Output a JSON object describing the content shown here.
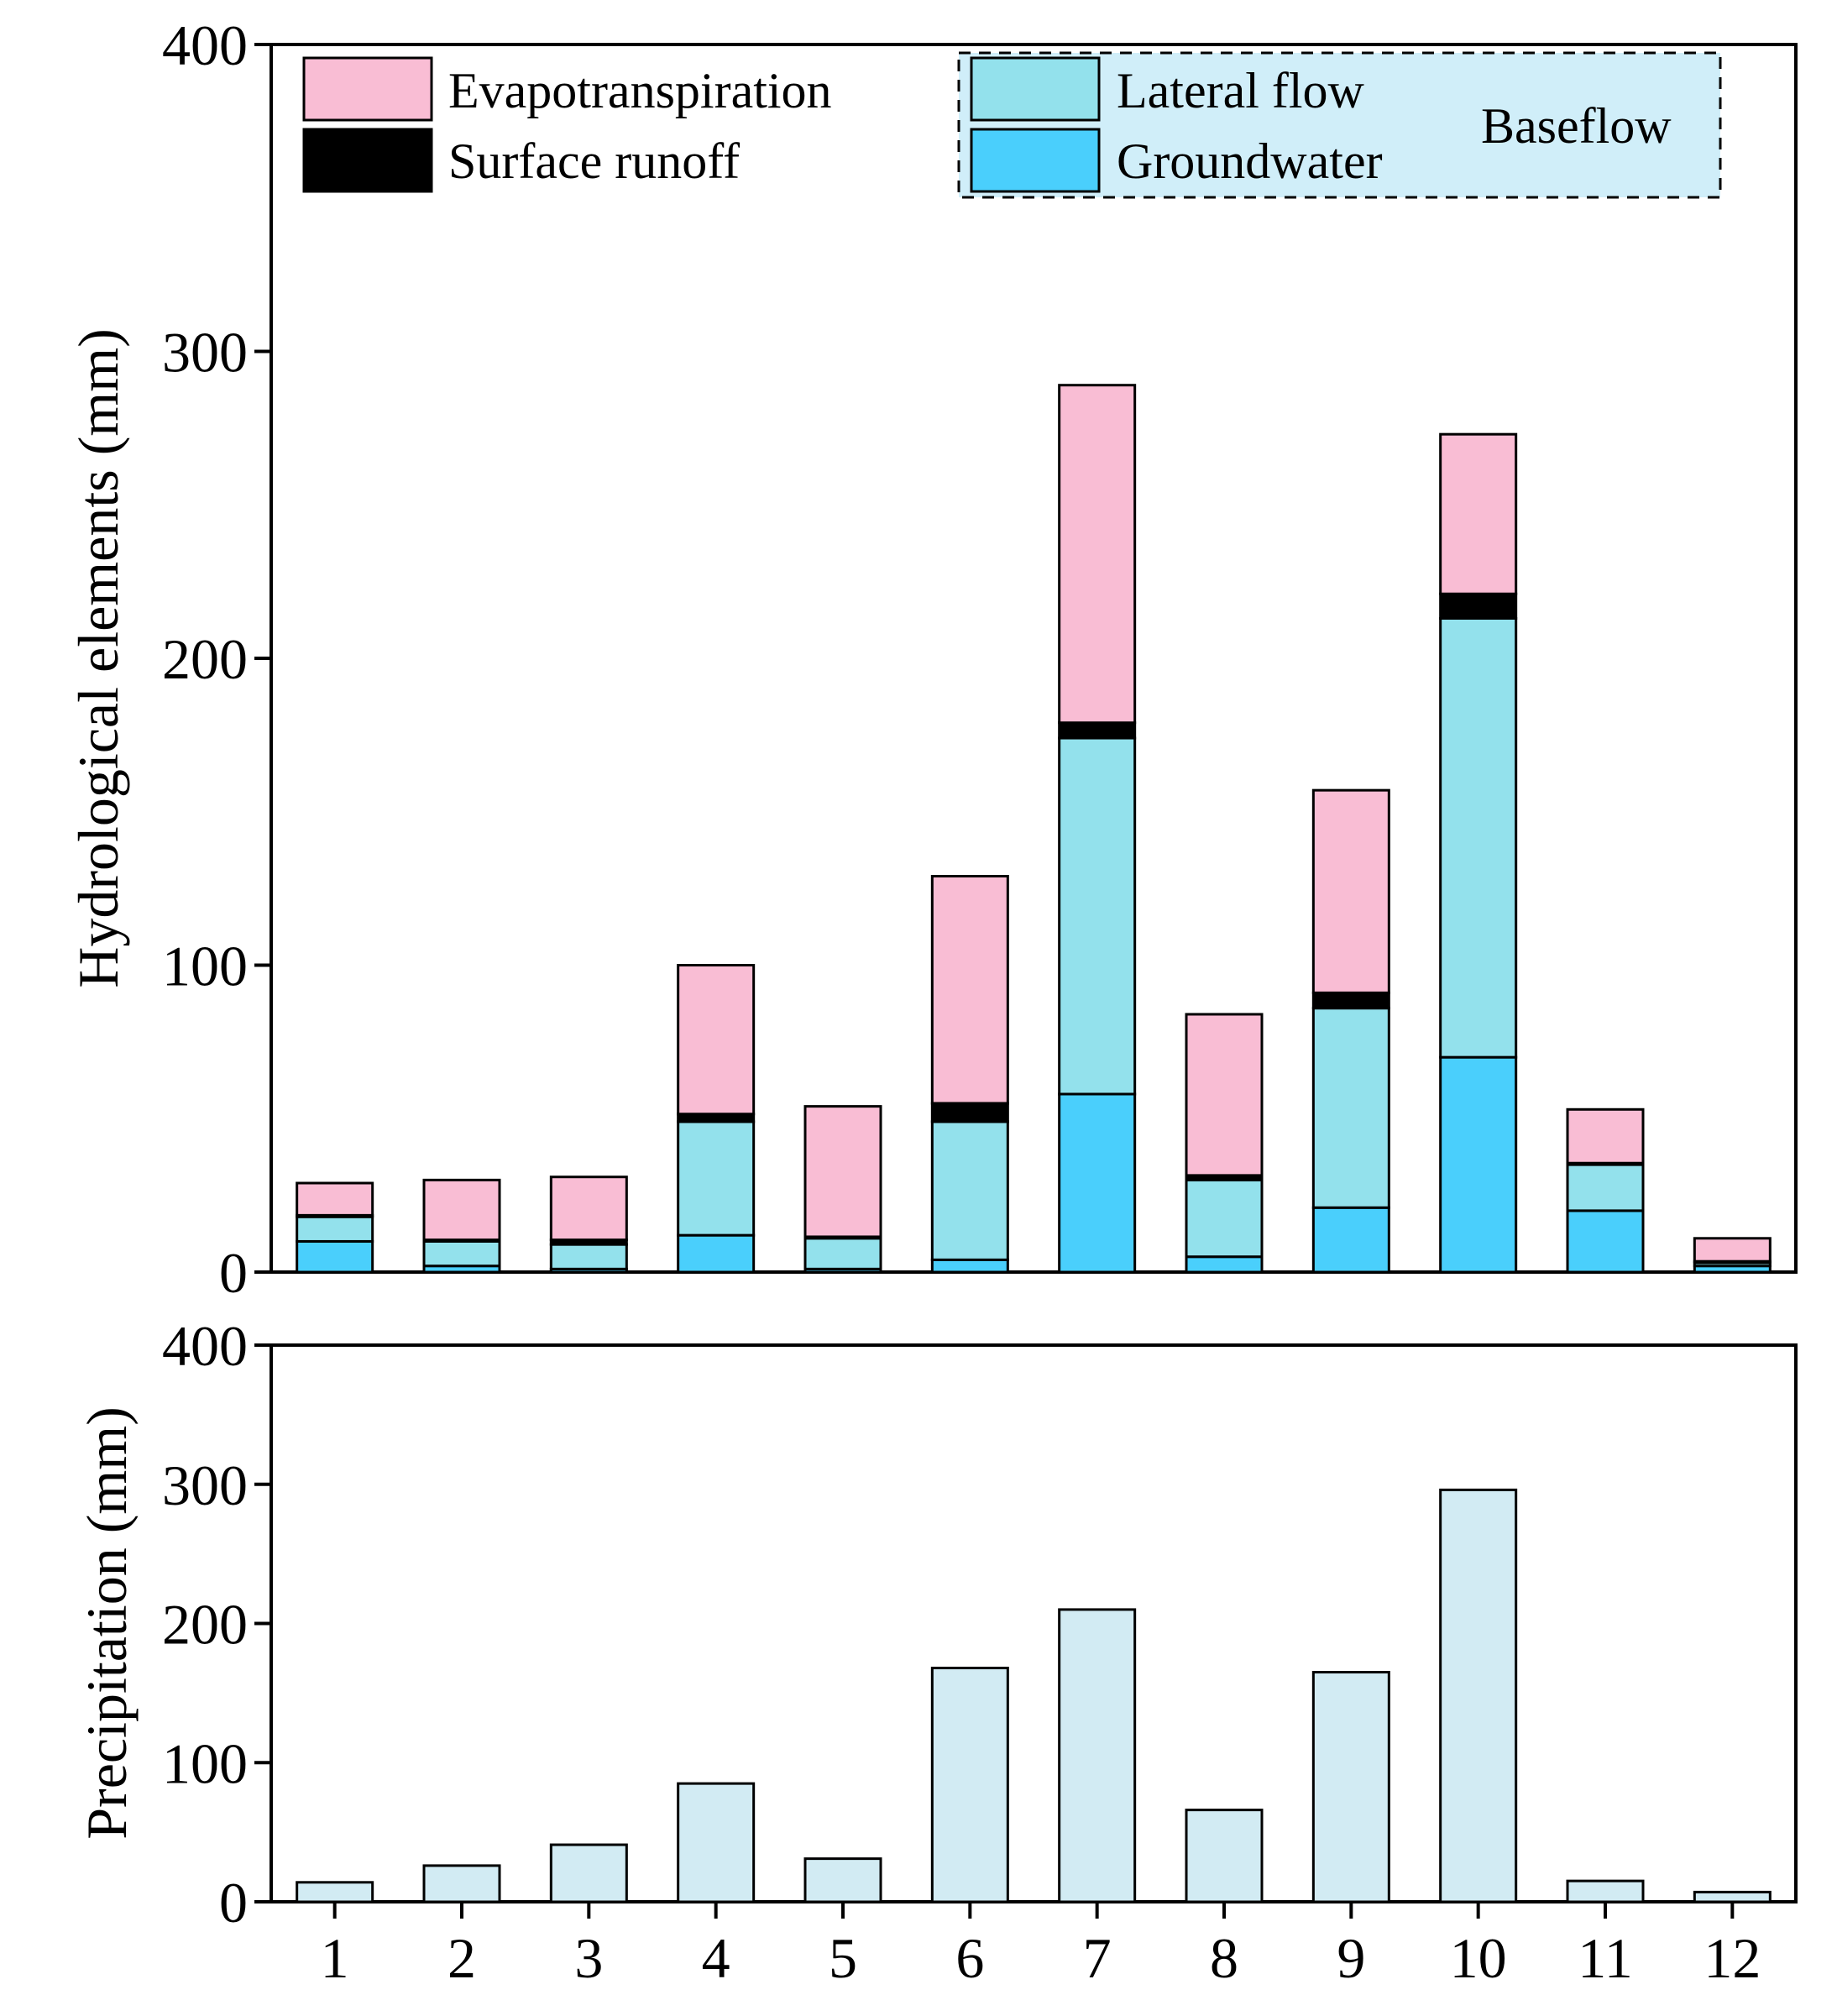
{
  "colors": {
    "evapotranspiration": "#f9bdd4",
    "surface_runoff": "#000000",
    "lateral_flow": "#93e1ec",
    "groundwater": "#4acffc",
    "precipitation": "#d2ebf3",
    "baseflow_box": "#d0eef9"
  },
  "chart_data": [
    {
      "type": "bar",
      "stacked": true,
      "categories": [
        "1",
        "2",
        "3",
        "4",
        "5",
        "6",
        "7",
        "8",
        "9",
        "10",
        "11",
        "12"
      ],
      "ylabel": "Hydrological elements (mm)",
      "xlabel": "",
      "ylim": [
        0,
        400
      ],
      "yticks": [
        "0",
        "100",
        "200",
        "300",
        "400"
      ],
      "grid": false,
      "legend_position": "top",
      "legend_group_label": "Baseflow",
      "series": [
        {
          "name": "Groundwater",
          "color_key": "groundwater",
          "values": [
            10,
            2,
            1,
            12,
            1,
            4,
            58,
            5,
            21,
            70,
            20,
            2
          ]
        },
        {
          "name": "Lateral flow",
          "color_key": "lateral_flow",
          "values": [
            8,
            8,
            8,
            37,
            10,
            45,
            116,
            25,
            65,
            143,
            15,
            1
          ]
        },
        {
          "name": "Surface runoff",
          "color_key": "surface_runoff",
          "values": [
            0.5,
            0.5,
            1.5,
            2.5,
            0.5,
            6,
            5,
            1.5,
            5,
            8,
            0.5,
            0.5
          ]
        },
        {
          "name": "Evapotranspiration",
          "color_key": "evapotranspiration",
          "values": [
            10.5,
            19.5,
            20.5,
            48.5,
            42.5,
            74,
            110,
            52.5,
            66,
            52,
            17.5,
            7.5
          ]
        }
      ]
    },
    {
      "type": "bar",
      "categories": [
        "1",
        "2",
        "3",
        "4",
        "5",
        "6",
        "7",
        "8",
        "9",
        "10",
        "11",
        "12"
      ],
      "ylabel": "Precipitation (mm)",
      "xlabel": "",
      "ylim": [
        0,
        400
      ],
      "yticks": [
        "0",
        "100",
        "200",
        "300",
        "400"
      ],
      "grid": false,
      "series": [
        {
          "name": "",
          "color_key": "precipitation",
          "values": [
            14,
            26,
            41,
            85,
            31,
            168,
            210,
            66,
            165,
            296,
            15,
            7
          ]
        }
      ]
    }
  ],
  "legend": {
    "items": [
      {
        "label": "Evapotranspiration",
        "color_key": "evapotranspiration"
      },
      {
        "label": "Surface runoff",
        "color_key": "surface_runoff"
      },
      {
        "label": "Lateral flow",
        "color_key": "lateral_flow"
      },
      {
        "label": "Groundwater",
        "color_key": "groundwater"
      }
    ],
    "group_label": "Baseflow"
  }
}
